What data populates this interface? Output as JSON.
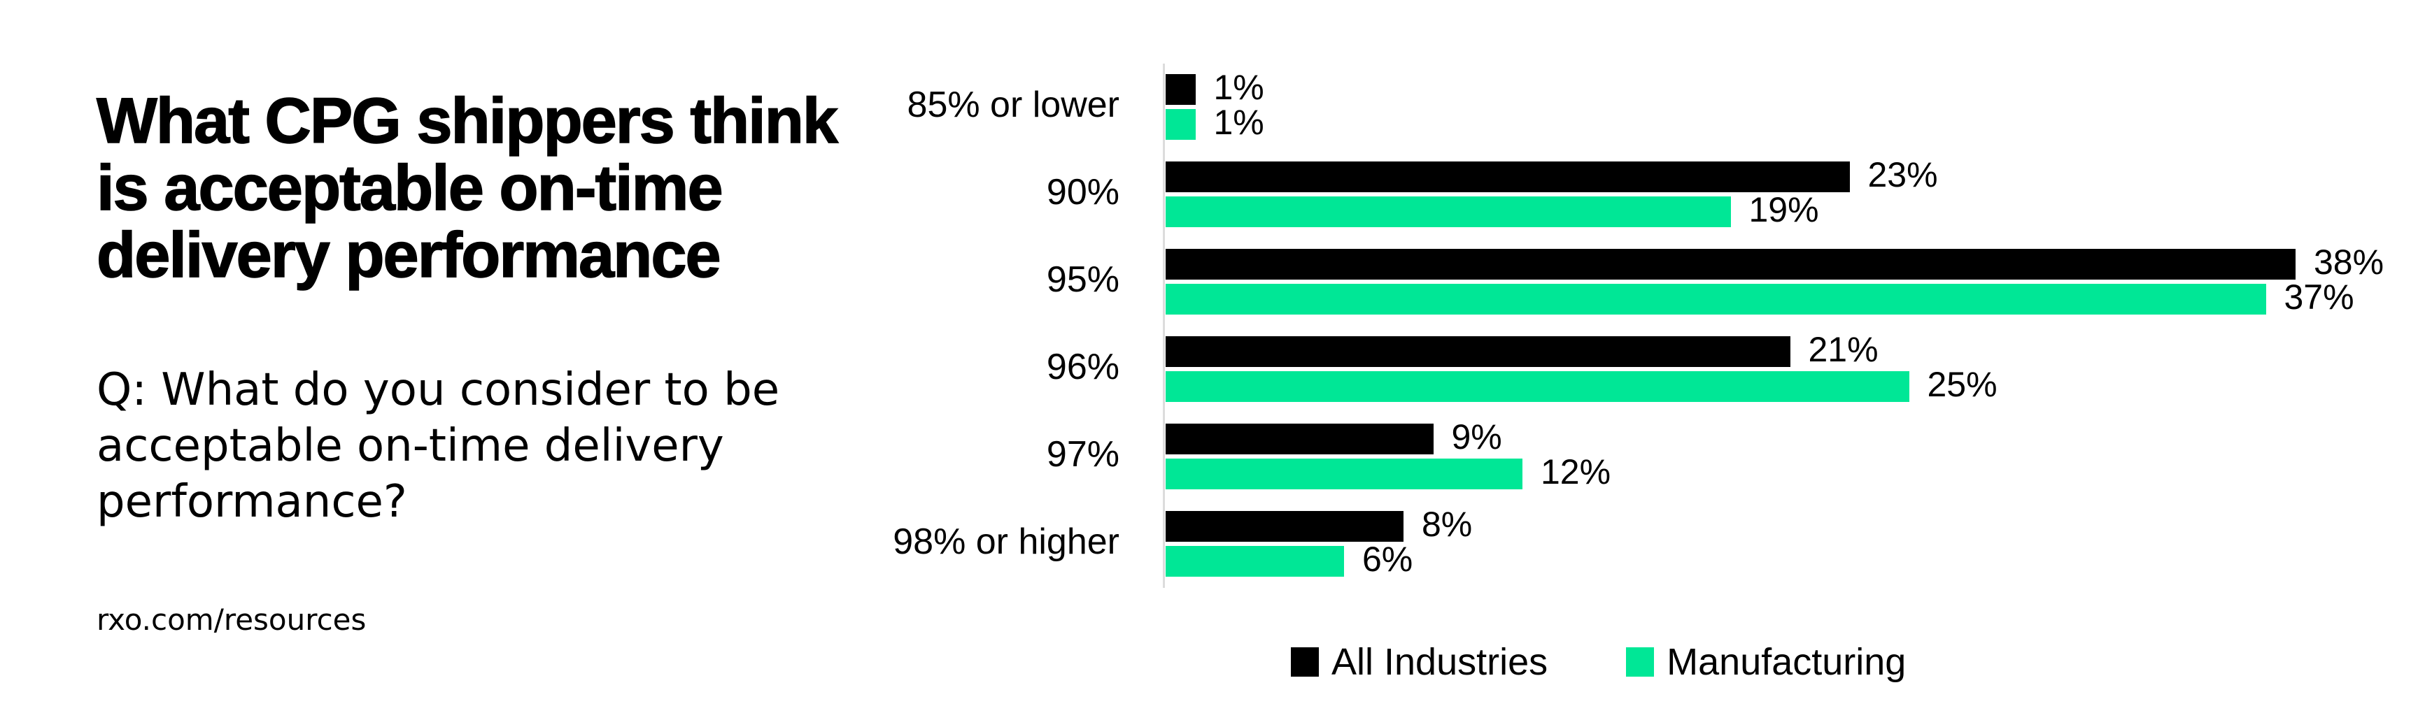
{
  "title": {
    "lines": [
      "What CPG shippers think",
      "is acceptable on-time",
      "delivery performance"
    ]
  },
  "question": {
    "lines": [
      "Q: What do you consider to be",
      "acceptable on-time delivery",
      "performance?"
    ]
  },
  "footer": {
    "url": "rxo.com/resources"
  },
  "chart_data": {
    "type": "bar",
    "orientation": "horizontal",
    "title": "What CPG shippers think is acceptable on-time delivery performance",
    "categories": [
      "85% or lower",
      "90%",
      "95%",
      "96%",
      "97%",
      "98% or higher"
    ],
    "series": [
      {
        "name": "All Industries",
        "color": "#000000",
        "values": [
          1,
          23,
          38,
          21,
          9,
          8
        ]
      },
      {
        "name": "Manufacturing",
        "color": "#00e796",
        "values": [
          1,
          19,
          37,
          25,
          12,
          6
        ]
      }
    ],
    "value_suffix": "%",
    "xlim": [
      0,
      40
    ],
    "grid": false,
    "legend_position": "bottom"
  },
  "colors": {
    "accent_green": "#00e796",
    "axis_line": "#dcdcdc",
    "text": "#000000",
    "background": "#ffffff"
  }
}
